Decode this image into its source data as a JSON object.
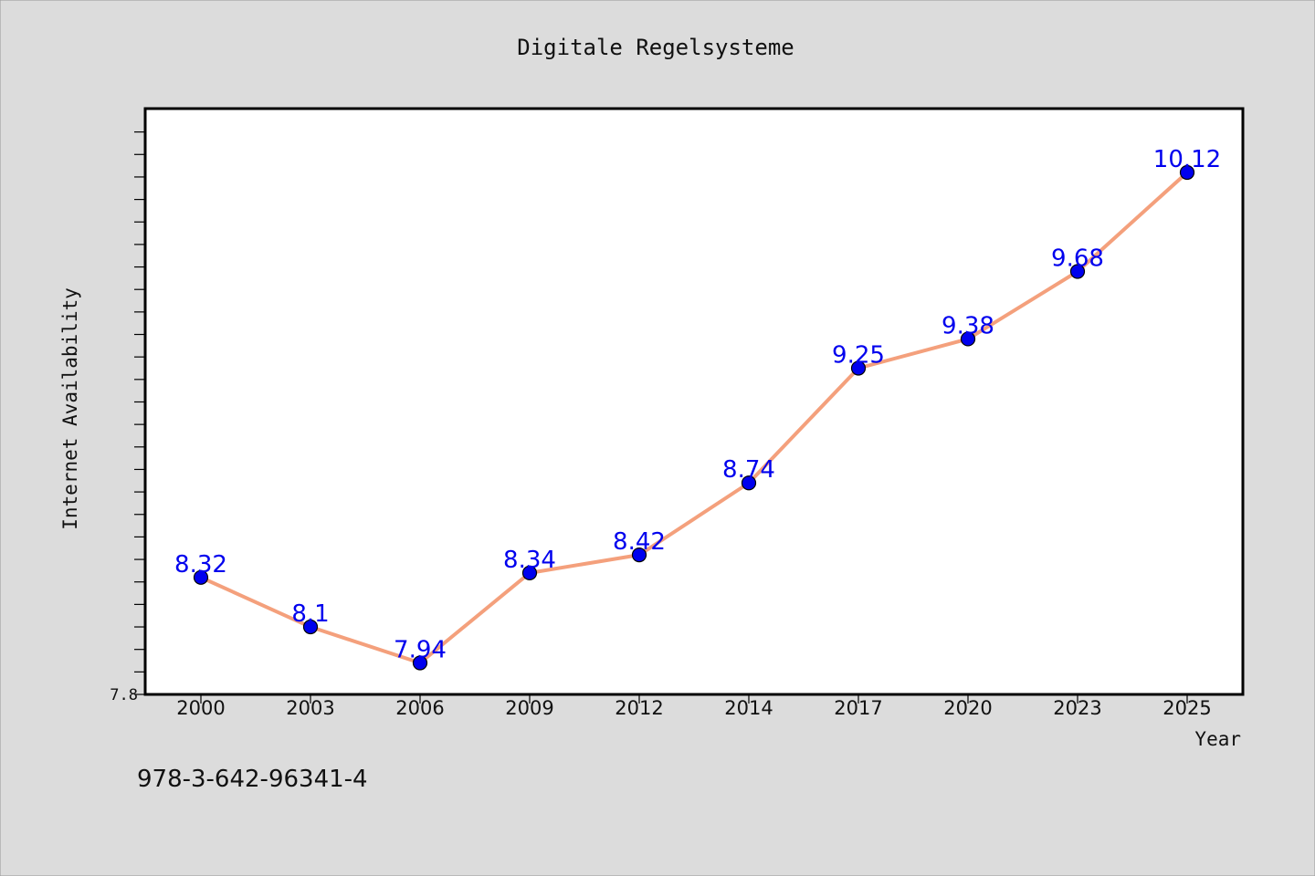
{
  "chart_data": {
    "type": "line",
    "title": "Digitale Regelsysteme",
    "xlabel": "Year",
    "ylabel": "Internet Availability",
    "categories": [
      "2000",
      "2003",
      "2006",
      "2009",
      "2012",
      "2014",
      "2017",
      "2020",
      "2023",
      "2025"
    ],
    "series": [
      {
        "values": [
          8.32,
          8.1,
          7.94,
          8.34,
          8.42,
          8.74,
          9.25,
          9.38,
          9.68,
          10.12
        ],
        "data_labels": [
          "8.32",
          "8.1",
          "7.94",
          "8.34",
          "8.42",
          "8.74",
          "9.25",
          "9.38",
          "9.68",
          "10.12"
        ],
        "line_color": "#f4a07c",
        "marker_color": "#0000ee",
        "label_color": "#0000ee"
      }
    ],
    "ylim": [
      7.8,
      10.4
    ],
    "y_tick_labels": [
      {
        "value": 7.8,
        "label": "7.8"
      }
    ],
    "y_minor_step": 0.1,
    "grid": false,
    "legend": "none"
  },
  "footer_code": "978-3-642-96341-4",
  "colors": {
    "background": "#dcdcdc",
    "plot_background": "#ffffff",
    "axis": "#000000"
  }
}
